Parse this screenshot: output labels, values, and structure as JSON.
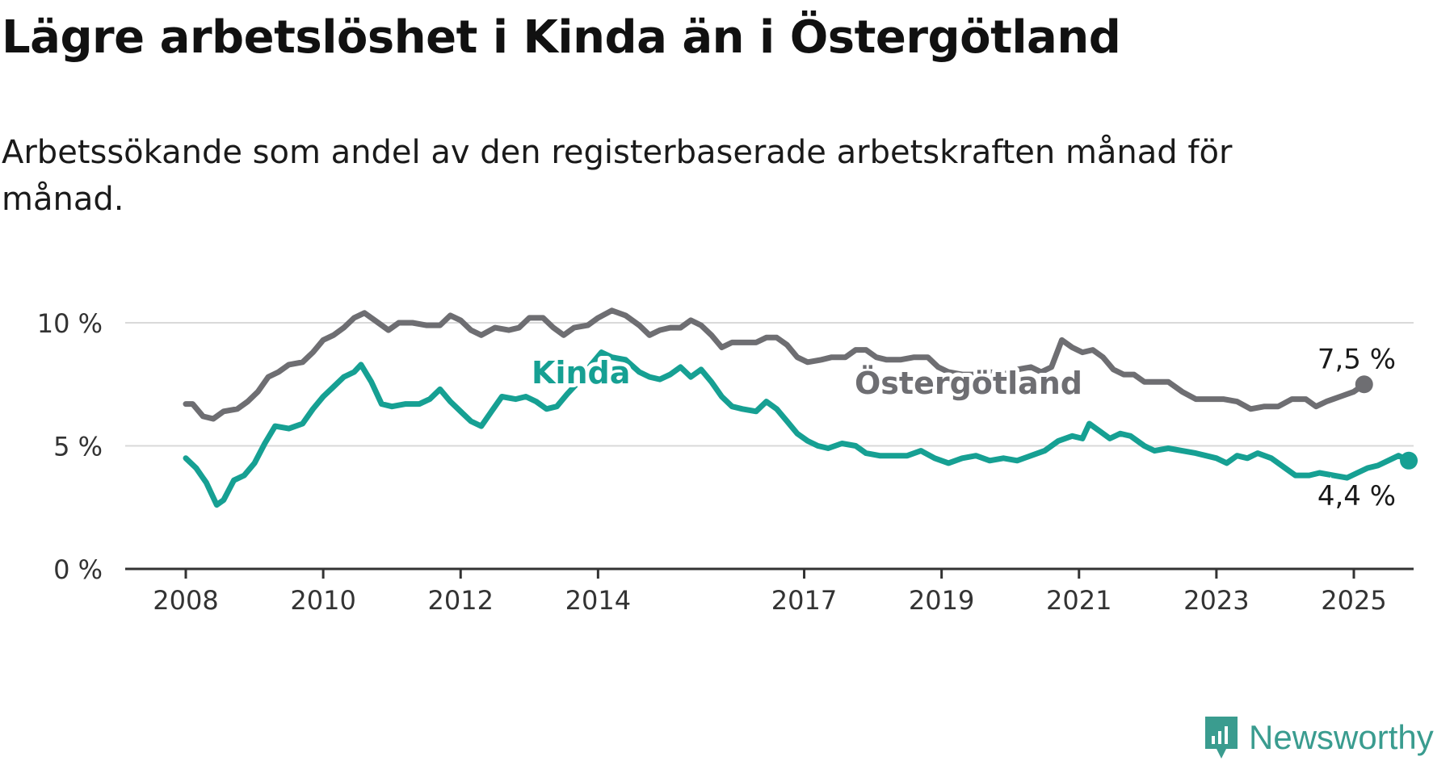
{
  "title": "Lägre arbetslöshet i Kinda än i Östergötland",
  "subtitle": "Arbetssökande som andel av den registerbaserade arbetskraften månad för månad.",
  "brand": {
    "name": "Newsworthy",
    "icon": "newsworthy-logo-icon",
    "color": "#3a9c8f"
  },
  "chart_data": {
    "type": "line",
    "ylim": [
      0,
      10
    ],
    "xlim": [
      2007.4,
      2026.0
    ],
    "yticks": [
      {
        "value": 0,
        "label": "0 %"
      },
      {
        "value": 5,
        "label": "5 %"
      },
      {
        "value": 10,
        "label": "10 %"
      }
    ],
    "xticks": [
      {
        "value": 2008,
        "label": "2008"
      },
      {
        "value": 2010,
        "label": "2010"
      },
      {
        "value": 2012,
        "label": "2012"
      },
      {
        "value": 2014,
        "label": "2014"
      },
      {
        "value": 2017,
        "label": "2017"
      },
      {
        "value": 2019,
        "label": "2019"
      },
      {
        "value": 2021,
        "label": "2021"
      },
      {
        "value": 2023,
        "label": "2023"
      },
      {
        "value": 2025,
        "label": "2025"
      }
    ],
    "grid": true,
    "series": [
      {
        "name": "Östergötland",
        "color": "#6e6e72",
        "last_label": "7,5 %",
        "points": [
          [
            2008.0,
            6.7
          ],
          [
            2008.1,
            6.7
          ],
          [
            2008.25,
            6.2
          ],
          [
            2008.4,
            6.1
          ],
          [
            2008.55,
            6.4
          ],
          [
            2008.75,
            6.5
          ],
          [
            2008.9,
            6.8
          ],
          [
            2009.05,
            7.2
          ],
          [
            2009.2,
            7.8
          ],
          [
            2009.35,
            8.0
          ],
          [
            2009.5,
            8.3
          ],
          [
            2009.7,
            8.4
          ],
          [
            2009.85,
            8.8
          ],
          [
            2010.0,
            9.3
          ],
          [
            2010.15,
            9.5
          ],
          [
            2010.3,
            9.8
          ],
          [
            2010.45,
            10.2
          ],
          [
            2010.6,
            10.4
          ],
          [
            2010.75,
            10.1
          ],
          [
            2010.95,
            9.7
          ],
          [
            2011.1,
            10.0
          ],
          [
            2011.3,
            10.0
          ],
          [
            2011.5,
            9.9
          ],
          [
            2011.7,
            9.9
          ],
          [
            2011.85,
            10.3
          ],
          [
            2012.0,
            10.1
          ],
          [
            2012.15,
            9.7
          ],
          [
            2012.3,
            9.5
          ],
          [
            2012.5,
            9.8
          ],
          [
            2012.7,
            9.7
          ],
          [
            2012.85,
            9.8
          ],
          [
            2013.0,
            10.2
          ],
          [
            2013.2,
            10.2
          ],
          [
            2013.35,
            9.8
          ],
          [
            2013.5,
            9.5
          ],
          [
            2013.65,
            9.8
          ],
          [
            2013.85,
            9.9
          ],
          [
            2014.0,
            10.2
          ],
          [
            2014.2,
            10.5
          ],
          [
            2014.4,
            10.3
          ],
          [
            2014.6,
            9.9
          ],
          [
            2014.75,
            9.5
          ],
          [
            2014.9,
            9.7
          ],
          [
            2015.05,
            9.8
          ],
          [
            2015.2,
            9.8
          ],
          [
            2015.35,
            10.1
          ],
          [
            2015.5,
            9.9
          ],
          [
            2015.65,
            9.5
          ],
          [
            2015.8,
            9.0
          ],
          [
            2015.95,
            9.2
          ],
          [
            2016.1,
            9.2
          ],
          [
            2016.3,
            9.2
          ],
          [
            2016.45,
            9.4
          ],
          [
            2016.6,
            9.4
          ],
          [
            2016.75,
            9.1
          ],
          [
            2016.9,
            8.6
          ],
          [
            2017.05,
            8.4
          ],
          [
            2017.25,
            8.5
          ],
          [
            2017.4,
            8.6
          ],
          [
            2017.6,
            8.6
          ],
          [
            2017.75,
            8.9
          ],
          [
            2017.9,
            8.9
          ],
          [
            2018.05,
            8.6
          ],
          [
            2018.2,
            8.5
          ],
          [
            2018.4,
            8.5
          ],
          [
            2018.6,
            8.6
          ],
          [
            2018.8,
            8.6
          ],
          [
            2018.95,
            8.2
          ],
          [
            2019.1,
            8.0
          ],
          [
            2019.3,
            7.9
          ],
          [
            2019.5,
            7.9
          ],
          [
            2019.7,
            8.0
          ],
          [
            2019.9,
            7.9
          ],
          [
            2020.1,
            8.1
          ],
          [
            2020.3,
            8.2
          ],
          [
            2020.45,
            8.0
          ],
          [
            2020.6,
            8.2
          ],
          [
            2020.75,
            9.3
          ],
          [
            2020.9,
            9.0
          ],
          [
            2021.05,
            8.8
          ],
          [
            2021.2,
            8.9
          ],
          [
            2021.35,
            8.6
          ],
          [
            2021.5,
            8.1
          ],
          [
            2021.65,
            7.9
          ],
          [
            2021.8,
            7.9
          ],
          [
            2021.95,
            7.6
          ],
          [
            2022.1,
            7.6
          ],
          [
            2022.3,
            7.6
          ],
          [
            2022.5,
            7.2
          ],
          [
            2022.7,
            6.9
          ],
          [
            2022.9,
            6.9
          ],
          [
            2023.1,
            6.9
          ],
          [
            2023.3,
            6.8
          ],
          [
            2023.5,
            6.5
          ],
          [
            2023.7,
            6.6
          ],
          [
            2023.9,
            6.6
          ],
          [
            2024.1,
            6.9
          ],
          [
            2024.3,
            6.9
          ],
          [
            2024.45,
            6.6
          ],
          [
            2024.6,
            6.8
          ],
          [
            2024.8,
            7.0
          ],
          [
            2025.0,
            7.2
          ],
          [
            2025.15,
            7.5
          ]
        ]
      },
      {
        "name": "Kinda",
        "color": "#16a093",
        "last_label": "4,4 %",
        "points": [
          [
            2008.0,
            4.5
          ],
          [
            2008.15,
            4.1
          ],
          [
            2008.3,
            3.5
          ],
          [
            2008.45,
            2.6
          ],
          [
            2008.55,
            2.8
          ],
          [
            2008.7,
            3.6
          ],
          [
            2008.85,
            3.8
          ],
          [
            2009.0,
            4.3
          ],
          [
            2009.15,
            5.1
          ],
          [
            2009.3,
            5.8
          ],
          [
            2009.5,
            5.7
          ],
          [
            2009.7,
            5.9
          ],
          [
            2009.85,
            6.5
          ],
          [
            2010.0,
            7.0
          ],
          [
            2010.15,
            7.4
          ],
          [
            2010.3,
            7.8
          ],
          [
            2010.45,
            8.0
          ],
          [
            2010.55,
            8.3
          ],
          [
            2010.7,
            7.6
          ],
          [
            2010.85,
            6.7
          ],
          [
            2011.0,
            6.6
          ],
          [
            2011.2,
            6.7
          ],
          [
            2011.4,
            6.7
          ],
          [
            2011.55,
            6.9
          ],
          [
            2011.7,
            7.3
          ],
          [
            2011.85,
            6.8
          ],
          [
            2012.0,
            6.4
          ],
          [
            2012.15,
            6.0
          ],
          [
            2012.3,
            5.8
          ],
          [
            2012.45,
            6.4
          ],
          [
            2012.6,
            7.0
          ],
          [
            2012.8,
            6.9
          ],
          [
            2012.95,
            7.0
          ],
          [
            2013.1,
            6.8
          ],
          [
            2013.25,
            6.5
          ],
          [
            2013.4,
            6.6
          ],
          [
            2013.55,
            7.1
          ],
          [
            2013.75,
            7.7
          ],
          [
            2013.9,
            8.3
          ],
          [
            2014.05,
            8.8
          ],
          [
            2014.2,
            8.6
          ],
          [
            2014.4,
            8.5
          ],
          [
            2014.6,
            8.0
          ],
          [
            2014.75,
            7.8
          ],
          [
            2014.9,
            7.7
          ],
          [
            2015.05,
            7.9
          ],
          [
            2015.2,
            8.2
          ],
          [
            2015.35,
            7.8
          ],
          [
            2015.5,
            8.1
          ],
          [
            2015.65,
            7.6
          ],
          [
            2015.8,
            7.0
          ],
          [
            2015.95,
            6.6
          ],
          [
            2016.1,
            6.5
          ],
          [
            2016.3,
            6.4
          ],
          [
            2016.45,
            6.8
          ],
          [
            2016.6,
            6.5
          ],
          [
            2016.75,
            6.0
          ],
          [
            2016.9,
            5.5
          ],
          [
            2017.05,
            5.2
          ],
          [
            2017.2,
            5.0
          ],
          [
            2017.35,
            4.9
          ],
          [
            2017.55,
            5.1
          ],
          [
            2017.75,
            5.0
          ],
          [
            2017.9,
            4.7
          ],
          [
            2018.1,
            4.6
          ],
          [
            2018.3,
            4.6
          ],
          [
            2018.5,
            4.6
          ],
          [
            2018.7,
            4.8
          ],
          [
            2018.9,
            4.5
          ],
          [
            2019.1,
            4.3
          ],
          [
            2019.3,
            4.5
          ],
          [
            2019.5,
            4.6
          ],
          [
            2019.7,
            4.4
          ],
          [
            2019.9,
            4.5
          ],
          [
            2020.1,
            4.4
          ],
          [
            2020.3,
            4.6
          ],
          [
            2020.5,
            4.8
          ],
          [
            2020.7,
            5.2
          ],
          [
            2020.9,
            5.4
          ],
          [
            2021.05,
            5.3
          ],
          [
            2021.15,
            5.9
          ],
          [
            2021.3,
            5.6
          ],
          [
            2021.45,
            5.3
          ],
          [
            2021.6,
            5.5
          ],
          [
            2021.75,
            5.4
          ],
          [
            2021.95,
            5.0
          ],
          [
            2022.1,
            4.8
          ],
          [
            2022.3,
            4.9
          ],
          [
            2022.5,
            4.8
          ],
          [
            2022.7,
            4.7
          ],
          [
            2022.85,
            4.6
          ],
          [
            2023.0,
            4.5
          ],
          [
            2023.15,
            4.3
          ],
          [
            2023.3,
            4.6
          ],
          [
            2023.45,
            4.5
          ],
          [
            2023.6,
            4.7
          ],
          [
            2023.8,
            4.5
          ],
          [
            2024.0,
            4.1
          ],
          [
            2024.15,
            3.8
          ],
          [
            2024.35,
            3.8
          ],
          [
            2024.5,
            3.9
          ],
          [
            2024.7,
            3.8
          ],
          [
            2024.9,
            3.7
          ],
          [
            2025.05,
            3.9
          ],
          [
            2025.2,
            4.1
          ],
          [
            2025.35,
            4.2
          ],
          [
            2025.5,
            4.4
          ],
          [
            2025.65,
            4.6
          ],
          [
            2025.8,
            4.4
          ]
        ]
      }
    ]
  }
}
